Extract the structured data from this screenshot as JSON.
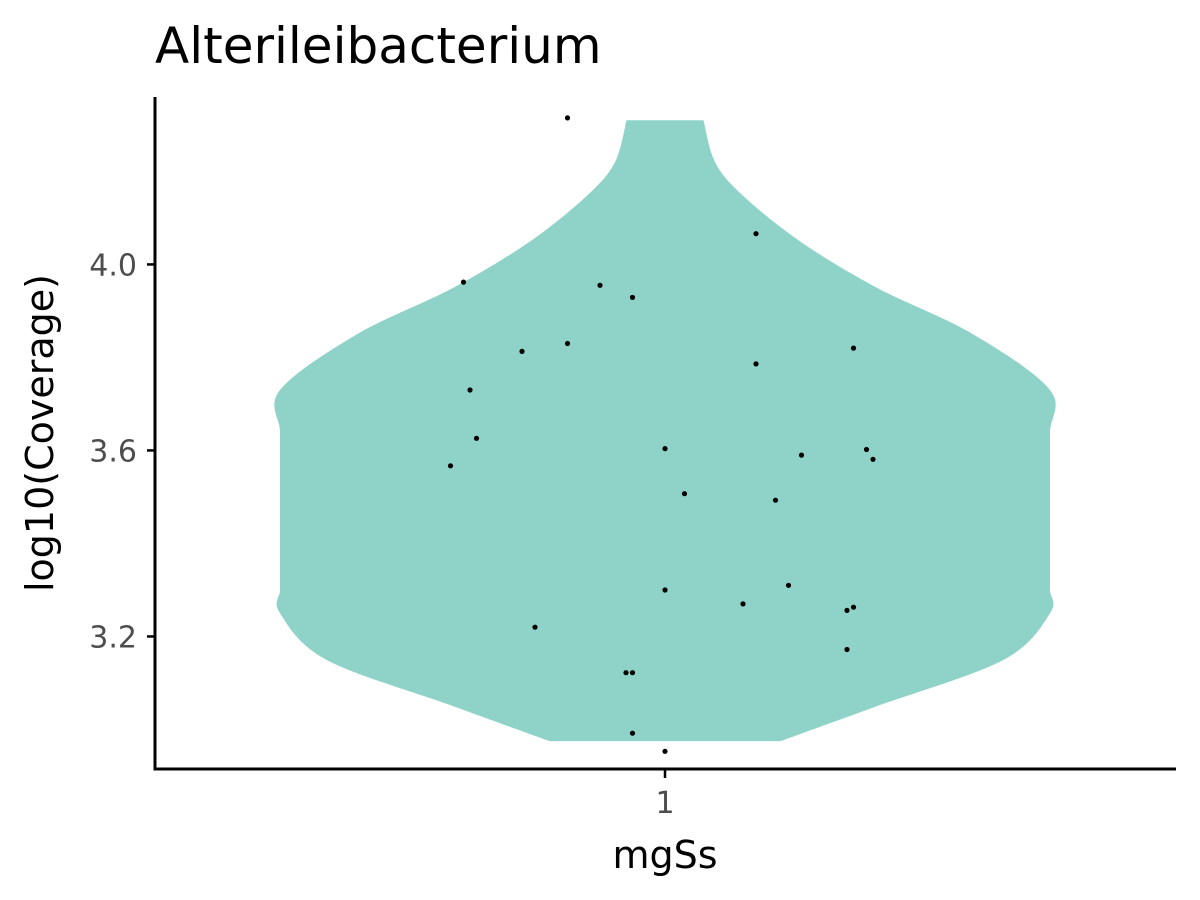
{
  "chart_data": {
    "type": "violin",
    "title": "Alterileibacterium",
    "xlabel": "mgSs",
    "ylabel": "log10(Coverage)",
    "categories": [
      "1"
    ],
    "ylim": [
      2.915,
      4.36
    ],
    "yticks": [
      3.2,
      3.6,
      4.0
    ],
    "ytick_labels": [
      "3.2",
      "3.6",
      "4.0"
    ],
    "fill_color": "#8fd3c8",
    "point_color": "#000000",
    "grid": false,
    "legend": "none",
    "density_profile": [
      {
        "y": 2.975,
        "half_width": 0.3
      },
      {
        "y": 3.05,
        "half_width": 0.55
      },
      {
        "y": 3.15,
        "half_width": 0.88
      },
      {
        "y": 3.25,
        "half_width": 1.0
      },
      {
        "y": 3.3,
        "half_width": 1.0
      },
      {
        "y": 3.35,
        "half_width": 1.0
      },
      {
        "y": 3.45,
        "half_width": 1.0
      },
      {
        "y": 3.55,
        "half_width": 1.0
      },
      {
        "y": 3.64,
        "half_width": 1.0
      },
      {
        "y": 3.73,
        "half_width": 1.0
      },
      {
        "y": 3.85,
        "half_width": 0.8
      },
      {
        "y": 3.95,
        "half_width": 0.55
      },
      {
        "y": 4.05,
        "half_width": 0.35
      },
      {
        "y": 4.15,
        "half_width": 0.2
      },
      {
        "y": 4.22,
        "half_width": 0.13
      },
      {
        "y": 4.31,
        "half_width": 0.1
      }
    ],
    "points": [
      {
        "x": 0.85,
        "y": 4.315
      },
      {
        "x": 1.14,
        "y": 4.066
      },
      {
        "x": 0.69,
        "y": 3.962
      },
      {
        "x": 0.9,
        "y": 3.955
      },
      {
        "x": 0.95,
        "y": 3.929
      },
      {
        "x": 0.85,
        "y": 3.83
      },
      {
        "x": 1.29,
        "y": 3.82
      },
      {
        "x": 0.78,
        "y": 3.813
      },
      {
        "x": 1.14,
        "y": 3.786
      },
      {
        "x": 0.7,
        "y": 3.73
      },
      {
        "x": 0.71,
        "y": 3.626
      },
      {
        "x": 1.0,
        "y": 3.604
      },
      {
        "x": 1.31,
        "y": 3.602
      },
      {
        "x": 1.21,
        "y": 3.59
      },
      {
        "x": 1.32,
        "y": 3.581
      },
      {
        "x": 0.67,
        "y": 3.567
      },
      {
        "x": 1.03,
        "y": 3.507
      },
      {
        "x": 1.17,
        "y": 3.493
      },
      {
        "x": 1.0,
        "y": 3.3
      },
      {
        "x": 1.19,
        "y": 3.31
      },
      {
        "x": 1.12,
        "y": 3.27
      },
      {
        "x": 1.29,
        "y": 3.263
      },
      {
        "x": 1.28,
        "y": 3.256
      },
      {
        "x": 0.8,
        "y": 3.22
      },
      {
        "x": 1.28,
        "y": 3.172
      },
      {
        "x": 0.94,
        "y": 3.122
      },
      {
        "x": 0.95,
        "y": 3.122
      },
      {
        "x": 0.95,
        "y": 2.992
      },
      {
        "x": 1.0,
        "y": 2.953
      }
    ]
  }
}
